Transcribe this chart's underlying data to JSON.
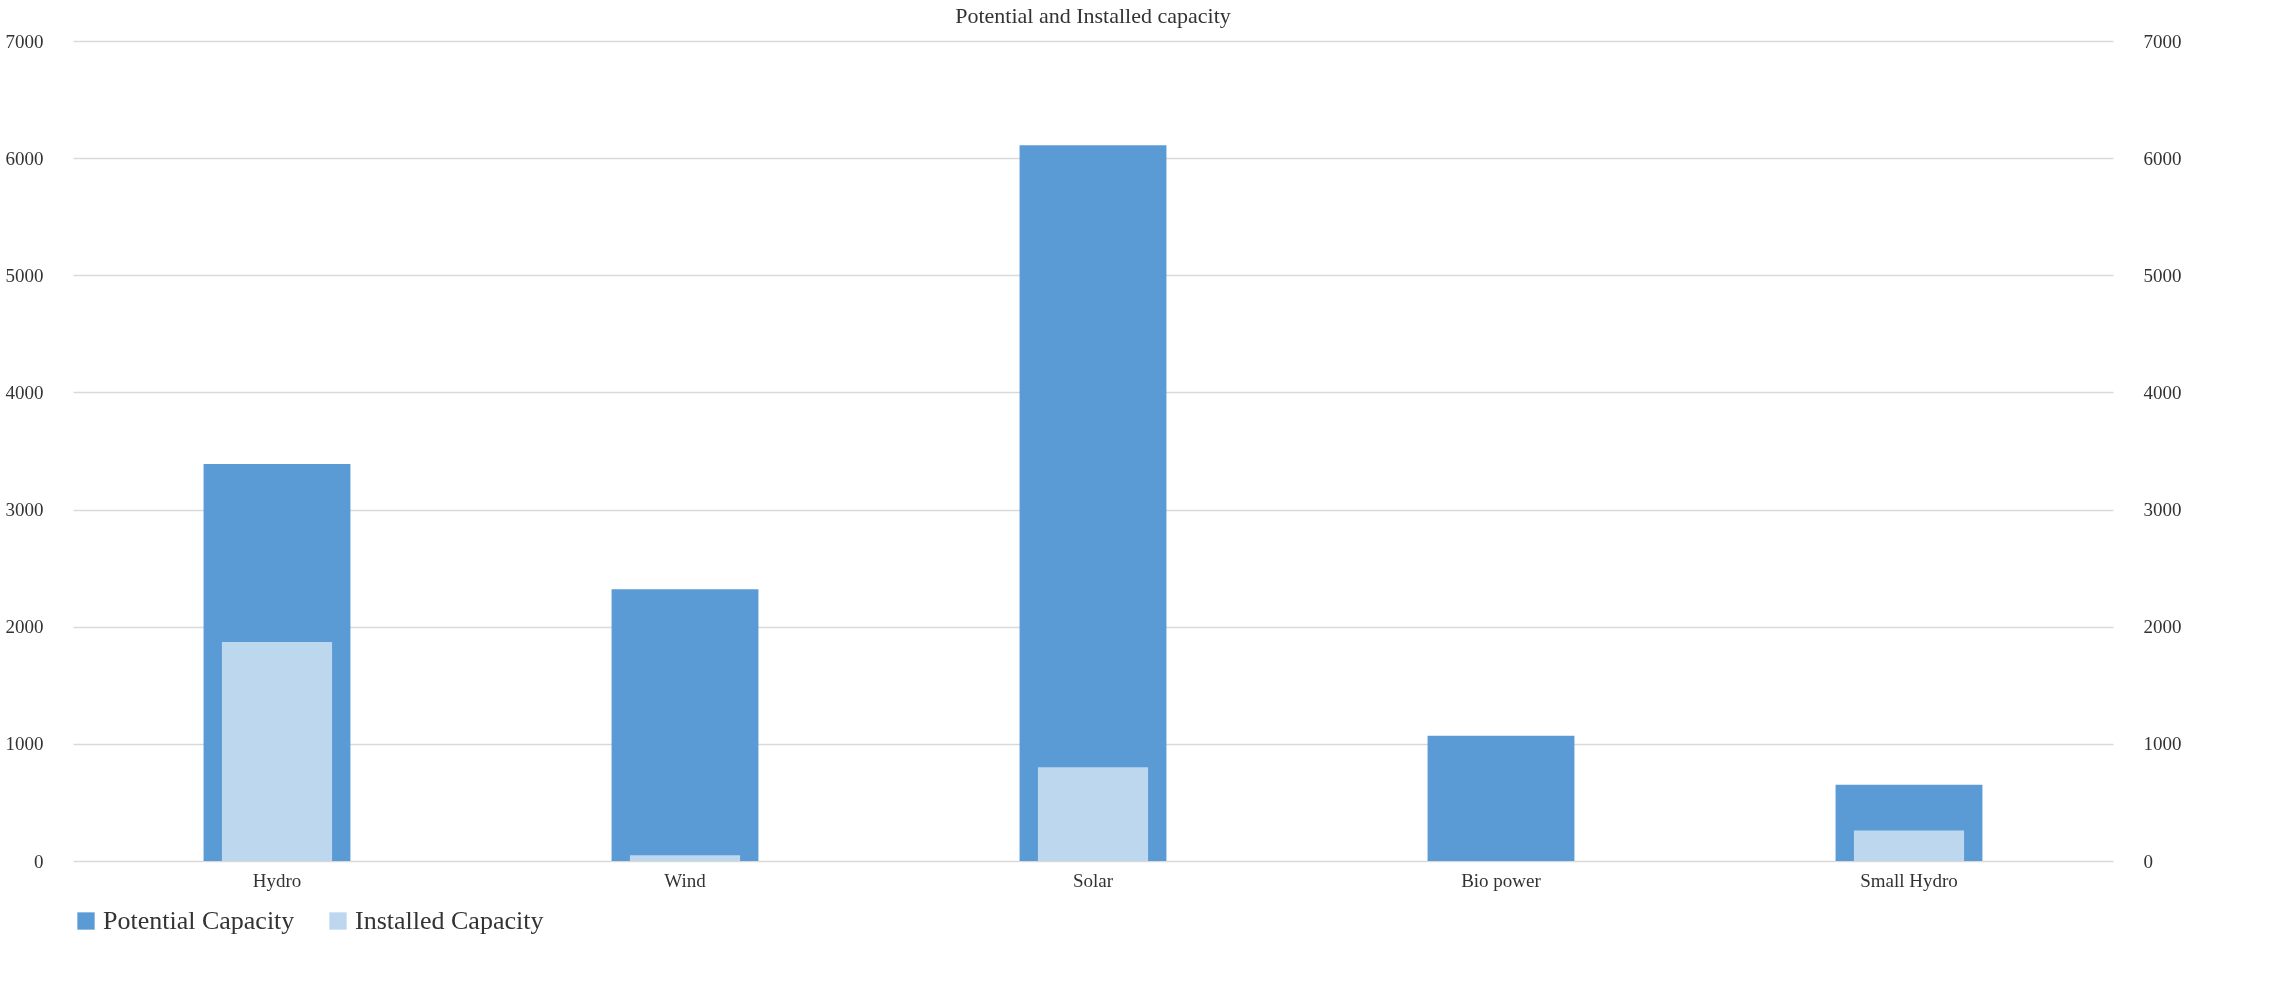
{
  "chart_data": {
    "type": "bar",
    "title": "Potential and Installed capacity",
    "categories": [
      "Hydro",
      "Wind",
      "Solar",
      "Bio power",
      "Small Hydro"
    ],
    "series": [
      {
        "name": "Potential Capacity",
        "color": "#5b9bd5",
        "values": [
          3390,
          2320,
          6110,
          1070,
          650
        ]
      },
      {
        "name": "Installed Capacity",
        "color": "#bdd7ee",
        "values": [
          1870,
          50,
          800,
          0,
          260
        ],
        "axis": "y2"
      }
    ],
    "ylim": [
      0,
      7000
    ],
    "yticks": [
      0,
      1000,
      2000,
      3000,
      4000,
      5000,
      6000,
      7000
    ],
    "y2lim": [
      0,
      7000
    ],
    "y2ticks": [
      0,
      1000,
      2000,
      3000,
      4000,
      5000,
      6000,
      7000
    ],
    "grid": "y",
    "legend": "bottom"
  }
}
